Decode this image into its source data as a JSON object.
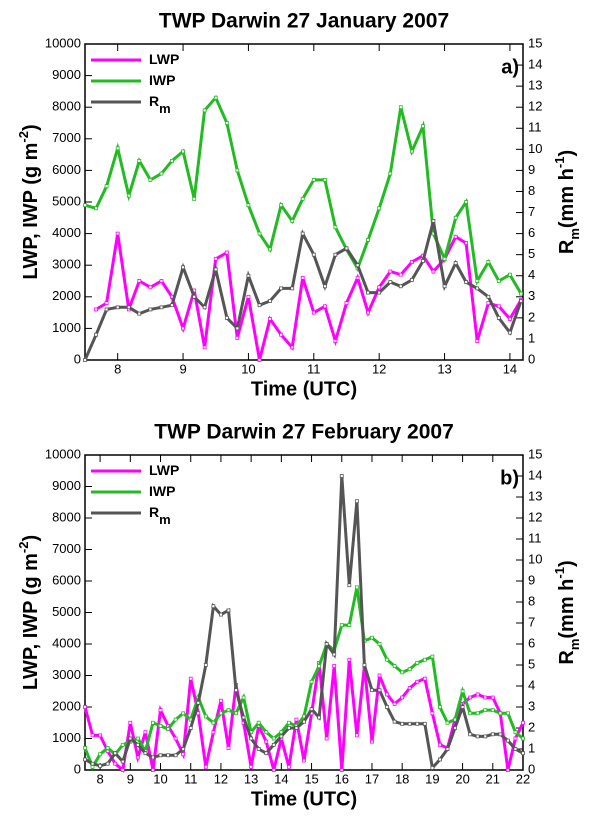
{
  "chart_data": [
    {
      "type": "line",
      "title": "TWP Darwin 27 January 2007",
      "annotation": "a)",
      "xlabel": "Time (UTC)",
      "ylabel": {
        "text": "LWP, IWP (g m",
        "sup": "-2",
        "end": ")"
      },
      "y2label": {
        "text": "R",
        "sub": "m",
        "mid": "(mm h",
        "sup": "-1",
        "end": ")"
      },
      "xlim": [
        7.5,
        14.2
      ],
      "xticks": [
        8,
        9,
        10,
        11,
        12,
        13,
        14
      ],
      "ylim": [
        0,
        10000
      ],
      "yticks": [
        0,
        1000,
        2000,
        3000,
        4000,
        5000,
        6000,
        7000,
        8000,
        9000,
        10000
      ],
      "y2lim": [
        0,
        15
      ],
      "y2ticks": [
        0,
        1,
        2,
        3,
        4,
        5,
        6,
        7,
        8,
        9,
        10,
        11,
        12,
        13,
        14,
        15
      ],
      "legend": "upper left",
      "x": [
        7.5,
        7.67,
        7.83,
        8,
        8.17,
        8.33,
        8.5,
        8.67,
        8.83,
        9,
        9.17,
        9.33,
        9.5,
        9.67,
        9.83,
        10,
        10.17,
        10.33,
        10.5,
        10.67,
        10.83,
        11,
        11.17,
        11.33,
        11.5,
        11.67,
        11.83,
        12,
        12.17,
        12.33,
        12.5,
        12.67,
        12.83,
        13,
        13.17,
        13.33,
        13.5,
        13.67,
        13.83,
        14,
        14.17
      ],
      "series": [
        {
          "name": "LWP",
          "color": "#ff00ff",
          "values": [
            null,
            1600,
            1800,
            4000,
            1600,
            2500,
            2300,
            2500,
            2000,
            1000,
            2200,
            400,
            3200,
            3400,
            700,
            2000,
            0,
            1300,
            800,
            400,
            2600,
            1500,
            1700,
            600,
            1800,
            2600,
            1500,
            2300,
            2800,
            2700,
            3100,
            3300,
            2800,
            3200,
            3900,
            3700,
            600,
            1800,
            1700,
            1300,
            1900
          ]
        },
        {
          "name": "IWP",
          "color": "#22bb22",
          "values": [
            4900,
            4800,
            5500,
            6700,
            5200,
            6300,
            5700,
            5900,
            6300,
            6600,
            5100,
            7900,
            8300,
            7500,
            6000,
            4900,
            4000,
            3500,
            4900,
            4400,
            5100,
            5700,
            5700,
            4200,
            3500,
            2900,
            3800,
            4800,
            5900,
            8000,
            6600,
            7400,
            4000,
            3200,
            4500,
            5000,
            2500,
            3100,
            2500,
            2700,
            2100
          ]
        },
        {
          "name": "R",
          "subscript": "m",
          "color": "#555555",
          "axis": "y2",
          "values": [
            0,
            1.2,
            2.4,
            2.5,
            2.5,
            2.2,
            2.4,
            2.5,
            2.6,
            4.4,
            3.0,
            2.5,
            4.3,
            2.0,
            1.5,
            4.0,
            2.6,
            2.8,
            3.4,
            3.4,
            6.0,
            5.0,
            3.5,
            5.0,
            5.3,
            4.5,
            3.2,
            3.2,
            3.7,
            3.5,
            3.8,
            4.7,
            6.6,
            3.5,
            4.6,
            3.7,
            3.4,
            3.0,
            2.0,
            1.3,
            2.8
          ]
        }
      ]
    },
    {
      "type": "line",
      "title": "TWP Darwin 27 February 2007",
      "annotation": "b)",
      "xlabel": "Time (UTC)",
      "ylabel": {
        "text": "LWP, IWP (g m",
        "sup": "-2",
        "end": ")"
      },
      "y2label": {
        "text": "R",
        "sub": "m",
        "mid": "(mm h",
        "sup": "-1",
        "end": ")"
      },
      "xlim": [
        7.5,
        22
      ],
      "xticks": [
        8,
        9,
        10,
        11,
        12,
        13,
        14,
        15,
        16,
        17,
        18,
        19,
        20,
        21,
        22
      ],
      "ylim": [
        0,
        10000
      ],
      "yticks": [
        0,
        1000,
        2000,
        3000,
        4000,
        5000,
        6000,
        7000,
        8000,
        9000,
        10000
      ],
      "y2lim": [
        0,
        15
      ],
      "y2ticks": [
        0,
        1,
        2,
        3,
        4,
        5,
        6,
        7,
        8,
        9,
        10,
        11,
        12,
        13,
        14,
        15
      ],
      "legend": "upper left",
      "x": [
        7.5,
        7.75,
        8,
        8.25,
        8.5,
        8.75,
        9,
        9.25,
        9.5,
        9.75,
        10,
        10.25,
        10.5,
        10.75,
        11,
        11.25,
        11.5,
        11.75,
        12,
        12.25,
        12.5,
        12.75,
        13,
        13.25,
        13.5,
        13.75,
        14,
        14.25,
        14.5,
        14.75,
        15,
        15.25,
        15.5,
        15.75,
        16,
        16.25,
        16.5,
        16.75,
        17,
        17.25,
        17.5,
        17.75,
        18,
        18.25,
        18.5,
        18.75,
        19,
        19.25,
        19.5,
        19.75,
        20,
        20.25,
        20.5,
        20.75,
        21,
        21.25,
        21.5,
        21.75,
        22
      ],
      "series": [
        {
          "name": "LWP",
          "color": "#ff00ff",
          "values": [
            2000,
            1100,
            1100,
            600,
            200,
            0,
            1500,
            400,
            1200,
            0,
            1900,
            1400,
            1000,
            500,
            2900,
            1800,
            100,
            1200,
            2200,
            700,
            2700,
            1500,
            100,
            1400,
            900,
            0,
            1000,
            100,
            1600,
            300,
            1800,
            3400,
            1000,
            3300,
            0,
            3500,
            1100,
            3300,
            900,
            3000,
            2400,
            2100,
            2300,
            2600,
            2800,
            2900,
            1800,
            800,
            700,
            1600,
            2100,
            2300,
            2400,
            2300,
            2300,
            1800,
            0,
            1000,
            1500
          ]
        },
        {
          "name": "IWP",
          "color": "#22bb22",
          "values": [
            700,
            100,
            500,
            700,
            500,
            800,
            900,
            1000,
            600,
            1500,
            1400,
            1300,
            1600,
            1800,
            1600,
            2300,
            1700,
            1500,
            1800,
            1900,
            1800,
            2300,
            1200,
            1500,
            1200,
            1000,
            1200,
            1500,
            1400,
            1700,
            2800,
            3300,
            4000,
            3800,
            4600,
            4600,
            5800,
            4100,
            4200,
            4000,
            3500,
            3300,
            3100,
            3200,
            3400,
            3500,
            3600,
            2000,
            1500,
            1600,
            2500,
            1800,
            1800,
            1900,
            1900,
            1800,
            1800,
            1200,
            1000
          ]
        },
        {
          "name": "R",
          "subscript": "m",
          "color": "#555555",
          "axis": "y2",
          "values": [
            0.5,
            0.3,
            0.2,
            0.3,
            0.8,
            0.4,
            1.5,
            1.2,
            0.8,
            0.6,
            0.7,
            0.7,
            0.7,
            1.0,
            2.0,
            3.2,
            5.0,
            7.8,
            7.4,
            7.6,
            3.8,
            2.5,
            1.5,
            1.0,
            0.8,
            1.2,
            1.6,
            2.0,
            2.0,
            2.3,
            2.9,
            2.5,
            6.0,
            5.5,
            14.0,
            8.8,
            12.8,
            5.0,
            3.8,
            3.8,
            3.0,
            2.3,
            2.2,
            2.2,
            2.2,
            2.2,
            0.1,
            0.5,
            1.0,
            2.0,
            3.0,
            1.7,
            1.6,
            1.6,
            1.7,
            1.7,
            1.4,
            1.0,
            0.8
          ]
        }
      ]
    }
  ]
}
